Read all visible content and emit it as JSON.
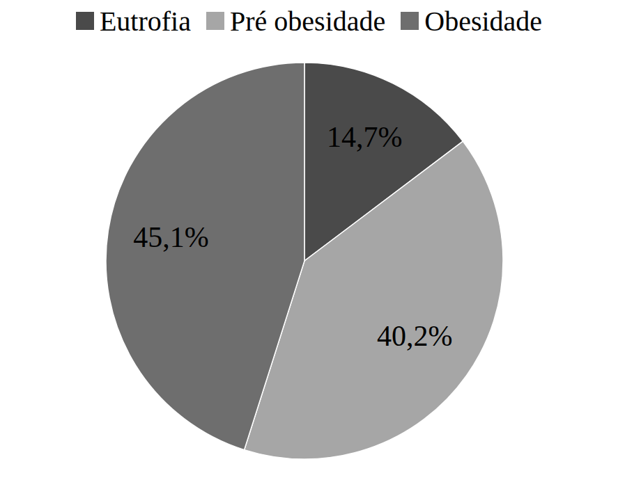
{
  "chart_data": {
    "type": "pie",
    "categories": [
      "Eutrofia",
      "Pré obesidade",
      "Obesidade"
    ],
    "values": [
      14.7,
      40.2,
      45.1
    ],
    "value_labels": [
      "14,7%",
      "40,2%",
      "45,1%"
    ],
    "colors": [
      "#4a4a4a",
      "#a6a6a6",
      "#6e6e6e"
    ],
    "data_labels": true,
    "legend": "top"
  }
}
